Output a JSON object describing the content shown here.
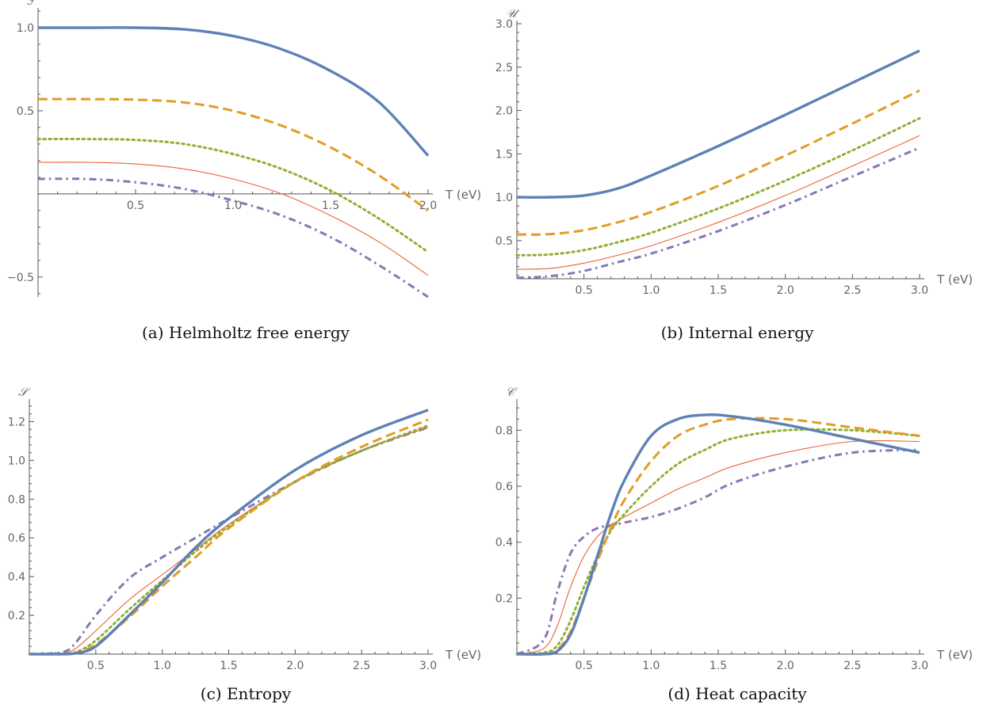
{
  "colors": {
    "series": [
      "#5e81b5",
      "#e19c24",
      "#8fb032",
      "#eb6235",
      "#8778b3"
    ],
    "axis": "#555555",
    "text": "#666666"
  },
  "chart_data": [
    {
      "id": "a",
      "type": "line",
      "caption": "(a) Helmholtz free energy",
      "ylabel": "ℱ",
      "xlabel": "T (eV)",
      "xlim": [
        0,
        2.0
      ],
      "ylim": [
        -0.62,
        1.1
      ],
      "xticks": [
        0.5,
        1.0,
        1.5,
        2.0
      ],
      "yticks": [
        -0.5,
        0.5,
        1.0
      ],
      "x": [
        0,
        0.25,
        0.5,
        0.75,
        1.0,
        1.25,
        1.5,
        1.75,
        2.0
      ],
      "series": [
        {
          "values": [
            1.0,
            1.0,
            1.0,
            0.99,
            0.95,
            0.87,
            0.74,
            0.55,
            0.23
          ]
        },
        {
          "values": [
            0.57,
            0.57,
            0.567,
            0.55,
            0.5,
            0.41,
            0.28,
            0.11,
            -0.1
          ]
        },
        {
          "values": [
            0.33,
            0.33,
            0.325,
            0.3,
            0.24,
            0.15,
            0.02,
            -0.15,
            -0.35
          ]
        },
        {
          "values": [
            0.19,
            0.19,
            0.18,
            0.15,
            0.09,
            0.0,
            -0.13,
            -0.29,
            -0.49
          ]
        },
        {
          "values": [
            0.09,
            0.09,
            0.07,
            0.03,
            -0.04,
            -0.13,
            -0.26,
            -0.43,
            -0.62
          ]
        }
      ]
    },
    {
      "id": "b",
      "type": "line",
      "caption": "(b) Internal energy",
      "ylabel": "𝒰",
      "xlabel": "T (eV)",
      "xlim": [
        0,
        3.0
      ],
      "ylim": [
        0.06,
        3.0
      ],
      "xticks": [
        0.5,
        1.0,
        1.5,
        2.0,
        2.5,
        3.0
      ],
      "yticks": [
        0.5,
        1.0,
        1.5,
        2.0,
        2.5,
        3.0
      ],
      "x": [
        0,
        0.25,
        0.5,
        0.75,
        1.0,
        1.5,
        2.0,
        2.5,
        3.0
      ],
      "series": [
        {
          "values": [
            1.0,
            1.0,
            1.02,
            1.1,
            1.25,
            1.59,
            1.95,
            2.32,
            2.69
          ]
        },
        {
          "values": [
            0.57,
            0.575,
            0.62,
            0.71,
            0.83,
            1.13,
            1.48,
            1.85,
            2.23
          ]
        },
        {
          "values": [
            0.33,
            0.34,
            0.39,
            0.48,
            0.59,
            0.87,
            1.19,
            1.54,
            1.91
          ]
        },
        {
          "values": [
            0.17,
            0.18,
            0.24,
            0.33,
            0.44,
            0.71,
            1.02,
            1.36,
            1.71
          ]
        },
        {
          "values": [
            0.07,
            0.09,
            0.15,
            0.25,
            0.35,
            0.61,
            0.91,
            1.24,
            1.57
          ]
        }
      ]
    },
    {
      "id": "c",
      "type": "line",
      "caption": "(c) Entropy",
      "ylabel": "𝒮",
      "xlabel": "T (eV)",
      "xlim": [
        0,
        3.0
      ],
      "ylim": [
        0,
        1.3
      ],
      "xticks": [
        0.5,
        1.0,
        1.5,
        2.0,
        2.5,
        3.0
      ],
      "yticks": [
        0.2,
        0.4,
        0.6,
        0.8,
        1.0,
        1.2
      ],
      "x": [
        0,
        0.25,
        0.35,
        0.5,
        0.75,
        1.0,
        1.25,
        1.5,
        2.0,
        2.5,
        3.0
      ],
      "series": [
        {
          "values": [
            0,
            0,
            0.005,
            0.04,
            0.2,
            0.37,
            0.55,
            0.7,
            0.95,
            1.13,
            1.26
          ]
        },
        {
          "values": [
            0,
            0,
            0.006,
            0.05,
            0.19,
            0.35,
            0.5,
            0.65,
            0.89,
            1.07,
            1.21
          ]
        },
        {
          "values": [
            0,
            0,
            0.01,
            0.07,
            0.23,
            0.38,
            0.53,
            0.66,
            0.89,
            1.05,
            1.18
          ]
        },
        {
          "values": [
            0,
            0.004,
            0.03,
            0.12,
            0.28,
            0.41,
            0.54,
            0.67,
            0.89,
            1.05,
            1.17
          ]
        },
        {
          "values": [
            0,
            0.01,
            0.06,
            0.2,
            0.39,
            0.5,
            0.6,
            0.7,
            0.89,
            1.05,
            1.17
          ]
        }
      ]
    },
    {
      "id": "d",
      "type": "line",
      "caption": "(d) Heat capacity",
      "ylabel": "𝒞",
      "xlabel": "T (eV)",
      "xlim": [
        0,
        3.0
      ],
      "ylim": [
        0,
        0.9
      ],
      "xticks": [
        0.5,
        1.0,
        1.5,
        2.0,
        2.5,
        3.0
      ],
      "yticks": [
        0.2,
        0.4,
        0.6,
        0.8
      ],
      "x": [
        0,
        0.2,
        0.3,
        0.4,
        0.5,
        0.6,
        0.7,
        0.8,
        1.0,
        1.2,
        1.4,
        1.6,
        2.0,
        2.5,
        3.0
      ],
      "series": [
        {
          "values": [
            0,
            0,
            0.01,
            0.07,
            0.2,
            0.35,
            0.5,
            0.62,
            0.78,
            0.84,
            0.855,
            0.85,
            0.82,
            0.77,
            0.72
          ]
        },
        {
          "values": [
            0,
            0,
            0.015,
            0.08,
            0.2,
            0.33,
            0.45,
            0.55,
            0.69,
            0.78,
            0.82,
            0.84,
            0.84,
            0.81,
            0.78
          ]
        },
        {
          "values": [
            0,
            0.005,
            0.03,
            0.12,
            0.24,
            0.35,
            0.44,
            0.5,
            0.6,
            0.68,
            0.73,
            0.77,
            0.8,
            0.8,
            0.78
          ]
        },
        {
          "values": [
            0,
            0.02,
            0.1,
            0.24,
            0.35,
            0.42,
            0.46,
            0.49,
            0.54,
            0.59,
            0.63,
            0.67,
            0.72,
            0.76,
            0.76
          ]
        },
        {
          "values": [
            0,
            0.05,
            0.22,
            0.36,
            0.42,
            0.45,
            0.46,
            0.47,
            0.49,
            0.52,
            0.56,
            0.61,
            0.67,
            0.72,
            0.73
          ]
        }
      ]
    }
  ]
}
